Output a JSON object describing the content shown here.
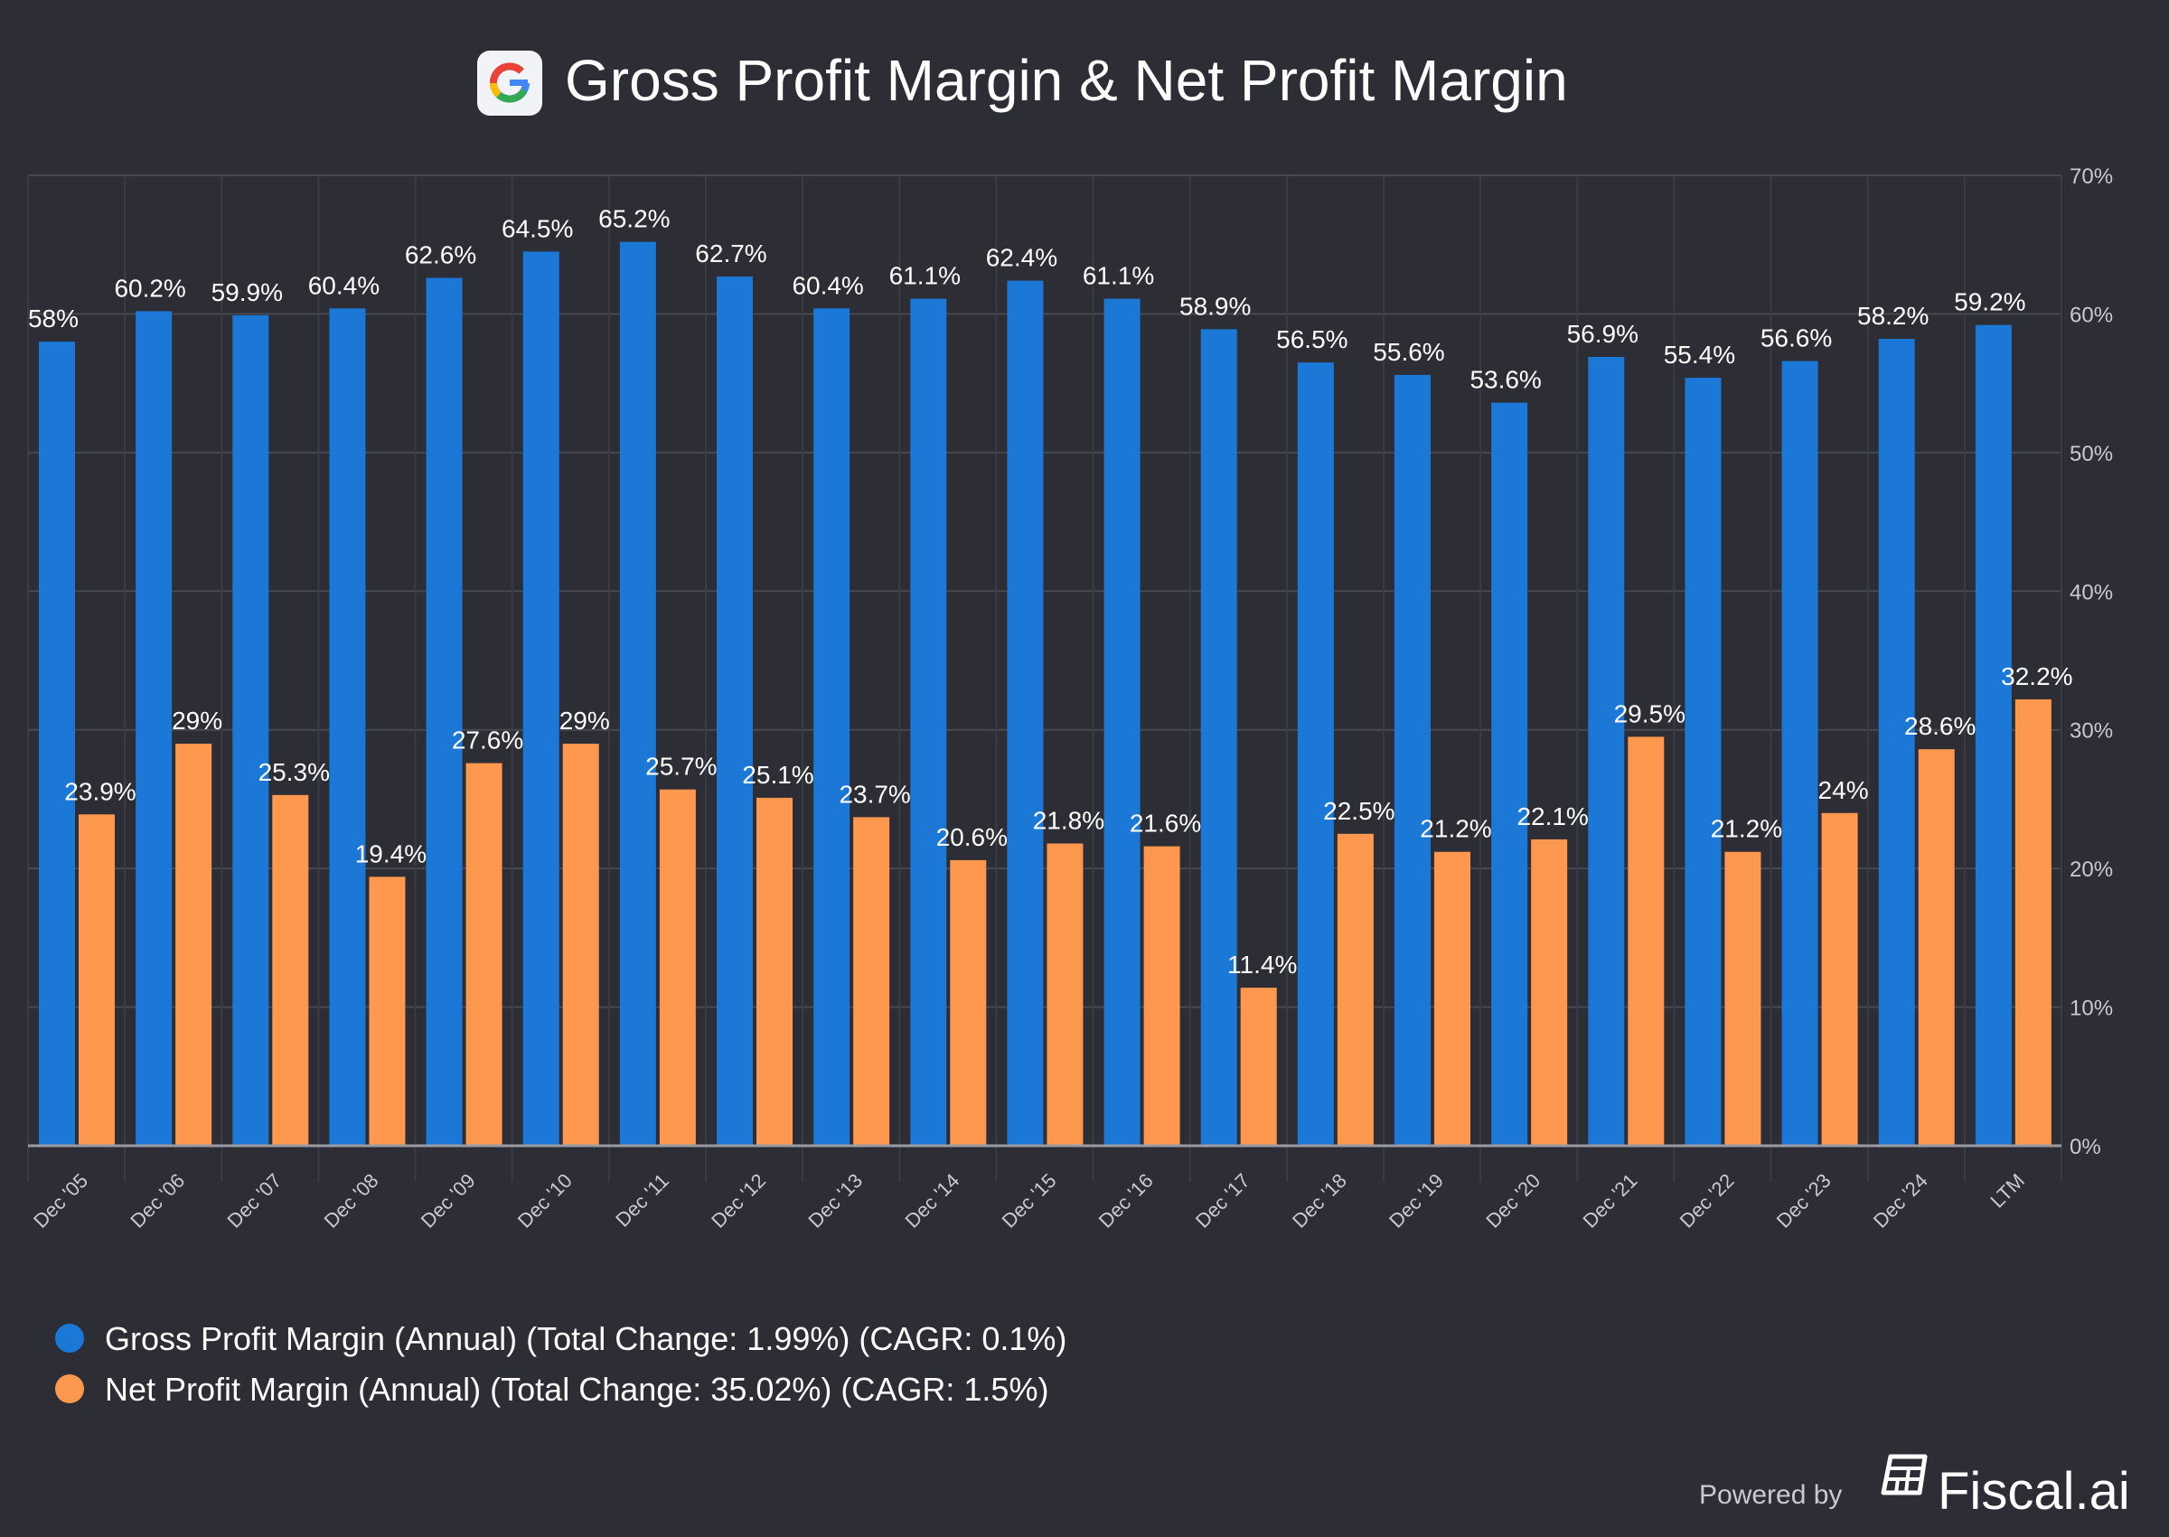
{
  "chart_data": {
    "type": "bar",
    "title": "Gross Profit Margin & Net Profit Margin",
    "categories": [
      "Dec '05",
      "Dec '06",
      "Dec '07",
      "Dec '08",
      "Dec '09",
      "Dec '10",
      "Dec '11",
      "Dec '12",
      "Dec '13",
      "Dec '14",
      "Dec '15",
      "Dec '16",
      "Dec '17",
      "Dec '18",
      "Dec '19",
      "Dec '20",
      "Dec '21",
      "Dec '22",
      "Dec '23",
      "Dec '24",
      "LTM"
    ],
    "series": [
      {
        "name": "Gross Profit Margin (Annual) (Total Change: 1.99%) (CAGR: 0.1%)",
        "color": "#1b78d6",
        "values": [
          58,
          60.2,
          59.9,
          60.4,
          62.6,
          64.5,
          65.2,
          62.7,
          60.4,
          61.1,
          62.4,
          61.1,
          58.9,
          56.5,
          55.6,
          53.6,
          56.9,
          55.4,
          56.6,
          58.2,
          59.2
        ]
      },
      {
        "name": "Net Profit Margin (Annual) (Total Change: 35.02%) (CAGR: 1.5%)",
        "color": "#ff984f",
        "values": [
          23.9,
          29,
          25.3,
          19.4,
          27.6,
          29,
          25.7,
          25.1,
          23.7,
          20.6,
          21.8,
          21.6,
          11.4,
          22.5,
          21.2,
          22.1,
          29.5,
          21.2,
          24,
          28.6,
          32.2
        ]
      }
    ],
    "ylim": [
      0,
      70
    ],
    "yticks": [
      0,
      10,
      20,
      30,
      40,
      50,
      60,
      70
    ],
    "ytick_labels": [
      "0%",
      "10%",
      "20%",
      "30%",
      "40%",
      "50%",
      "60%",
      "70%"
    ],
    "y_axis_side": "right",
    "grid": true,
    "legend_position": "bottom-left",
    "xlabel": "",
    "ylabel": ""
  },
  "footer": {
    "powered_by": "Powered by",
    "brand": "Fiscal.ai"
  },
  "logo_letter": "G"
}
